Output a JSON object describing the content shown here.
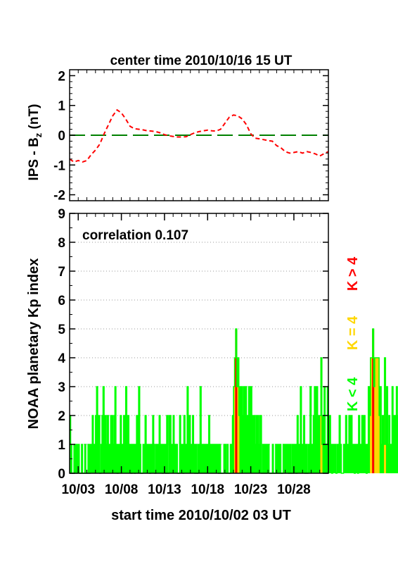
{
  "chart_data": [
    {
      "type": "line",
      "title": "center time 2010/10/16 15 UT",
      "ylabel_main": "IPS - B",
      "ylabel_sub": "z",
      "ylabel_unit": " (nT)",
      "ylim": [
        -2.2,
        2.2
      ],
      "y_ticks": [
        "2",
        "1",
        "0",
        "-1",
        "-2"
      ],
      "x_range_days": [
        0,
        30
      ],
      "colors": {
        "series": "#ff0000",
        "zero": "#008000"
      },
      "series": [
        {
          "x": [
            0,
            0.5,
            1,
            1.5,
            2,
            2.5,
            3,
            3.5,
            4,
            4.5,
            5,
            5.5,
            6,
            6.5,
            7,
            7.5,
            8,
            8.5,
            9,
            9.5,
            10,
            10.5,
            11,
            11.5,
            12,
            12.5,
            13,
            13.5,
            14,
            14.5,
            15,
            15.5,
            16,
            16.5,
            17,
            17.5,
            18,
            18.5,
            19,
            19.5,
            20,
            20.5,
            21,
            21.5,
            22,
            22.5,
            23,
            23.5,
            24,
            24.5,
            25,
            25.5,
            26,
            26.5,
            27,
            27.5,
            28,
            28.5,
            29,
            29.5,
            30
          ],
          "values": [
            -0.8,
            -0.9,
            -0.85,
            -0.9,
            -0.85,
            -0.65,
            -0.5,
            -0.3,
            0.05,
            0.35,
            0.65,
            0.85,
            0.75,
            0.55,
            0.3,
            0.22,
            0.2,
            0.18,
            0.15,
            0.14,
            0.12,
            0.08,
            0.02,
            -0.02,
            -0.04,
            -0.06,
            -0.06,
            -0.05,
            0.02,
            0.08,
            0.12,
            0.15,
            0.17,
            0.15,
            0.14,
            0.2,
            0.4,
            0.6,
            0.68,
            0.65,
            0.55,
            0.35,
            0.05,
            -0.1,
            -0.12,
            -0.15,
            -0.18,
            -0.2,
            -0.35,
            -0.42,
            -0.55,
            -0.6,
            -0.58,
            -0.55,
            -0.6,
            -0.55,
            -0.58,
            -0.63,
            -0.7,
            -0.62,
            -0.55
          ]
        }
      ]
    },
    {
      "type": "bar",
      "annotation": "correlation 0.107",
      "ylabel": "NOAA planetary Kp index",
      "xlabel": "start time 2010/10/02 03 UT",
      "ylim": [
        0,
        9
      ],
      "y_ticks": [
        "0",
        "1",
        "2",
        "3",
        "4",
        "5",
        "6",
        "7",
        "8",
        "9"
      ],
      "x_ticks": [
        {
          "label": "10/03",
          "day": 1
        },
        {
          "label": "10/08",
          "day": 6
        },
        {
          "label": "10/13",
          "day": 11
        },
        {
          "label": "10/18",
          "day": 16
        },
        {
          "label": "10/23",
          "day": 21
        },
        {
          "label": "10/28",
          "day": 26
        }
      ],
      "grid": "dotted horizontal",
      "legend": [
        {
          "label": "K < 4",
          "color": "#00ff00"
        },
        {
          "label": "K = 4",
          "color": "#ffd700"
        },
        {
          "label": "K > 4",
          "color": "#ff0000"
        }
      ],
      "bar_interval_hours": 3,
      "kp_values": [
        2,
        1,
        0,
        0,
        1,
        1,
        0,
        1,
        1,
        0,
        0,
        1,
        0,
        0,
        1,
        0,
        0,
        1,
        0,
        1,
        1,
        2,
        1,
        1,
        2,
        3,
        1,
        2,
        0,
        1,
        2,
        3,
        1,
        2,
        1,
        2,
        1,
        1,
        2,
        2,
        1,
        2,
        3,
        1,
        0,
        1,
        1,
        2,
        1,
        1,
        2,
        1,
        3,
        1,
        2,
        1,
        1,
        0,
        1,
        1,
        0,
        1,
        2,
        1,
        3,
        1,
        0,
        0,
        1,
        1,
        2,
        1,
        1,
        1,
        0,
        1,
        1,
        2,
        1,
        0,
        1,
        1,
        1,
        2,
        1,
        1,
        0,
        1,
        1,
        0,
        2,
        0,
        2,
        2,
        1,
        1,
        2,
        1,
        1,
        1,
        0,
        0,
        2,
        1,
        1,
        0,
        2,
        1,
        1,
        3,
        1,
        2,
        1,
        1,
        2,
        1,
        0,
        1,
        0,
        1,
        1,
        3,
        1,
        1,
        1,
        1,
        1,
        1,
        1,
        2,
        1,
        1,
        1,
        1,
        1,
        1,
        1,
        1,
        0,
        1,
        0,
        0,
        0,
        1,
        1,
        0,
        1,
        0,
        0,
        1,
        1,
        2,
        3,
        4,
        5,
        3,
        4,
        2,
        3,
        3,
        2,
        3,
        1,
        3,
        1,
        2,
        3,
        2,
        3,
        2,
        1,
        2,
        1,
        2,
        2,
        1,
        2,
        2,
        0,
        1,
        0,
        1,
        0,
        1,
        1,
        0,
        0,
        0,
        1,
        0,
        0,
        1,
        0,
        1,
        0,
        1,
        0,
        0,
        1,
        1,
        1,
        1,
        1,
        0,
        1,
        0,
        1,
        0,
        1,
        1,
        0,
        2,
        1,
        1,
        3,
        1,
        1,
        2,
        0,
        1,
        0,
        1,
        1,
        3,
        1,
        1,
        2,
        3,
        1,
        3,
        2,
        1,
        2,
        4,
        1,
        2,
        3,
        1,
        1,
        3,
        1,
        2,
        1,
        0,
        1,
        1,
        1,
        0,
        1,
        1,
        2,
        1,
        0,
        0,
        1,
        1,
        2,
        1,
        1,
        2,
        1,
        2,
        1,
        1,
        0,
        1,
        1,
        0,
        2,
        1,
        1,
        2,
        1,
        2,
        1,
        0,
        1,
        3,
        2,
        4,
        4,
        5,
        3,
        4,
        4,
        4,
        4,
        2,
        3,
        1,
        2,
        1,
        4,
        1,
        3,
        1,
        2,
        1,
        1,
        3,
        2,
        2,
        1,
        3,
        2,
        1,
        1,
        2,
        1,
        1,
        1,
        0,
        1,
        1,
        0,
        1,
        2,
        2,
        0,
        1,
        1,
        0,
        1,
        1,
        0,
        1,
        1,
        0,
        0,
        0,
        0,
        1,
        0,
        1,
        2,
        1,
        1,
        1,
        0,
        1,
        1,
        0,
        2,
        0,
        0,
        2,
        0,
        1,
        1,
        2,
        0,
        0,
        1,
        0,
        0,
        0,
        0,
        1,
        1,
        0,
        0,
        0,
        0,
        0,
        1,
        1,
        1,
        1,
        1,
        0,
        0,
        0,
        0,
        0,
        1,
        1,
        0
      ]
    }
  ]
}
